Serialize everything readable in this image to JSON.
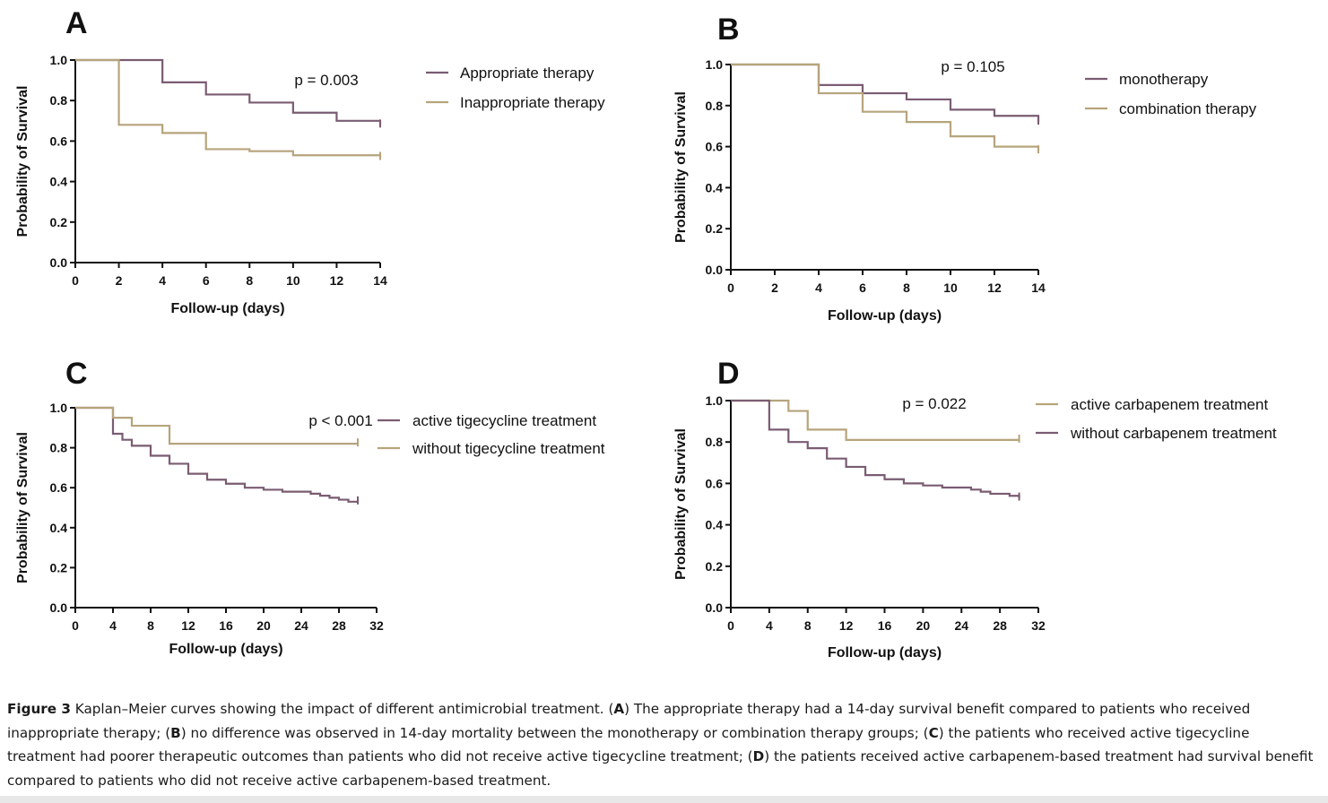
{
  "colors": {
    "purple": "#7a5c72",
    "tan": "#b6a47c",
    "axis": "#111111"
  },
  "chart_data": [
    {
      "panel": "A",
      "type": "line",
      "step": true,
      "xlabel": "Follow-up (days)",
      "ylabel": "Probability of Survival",
      "xlim": [
        0,
        14
      ],
      "ylim": [
        0,
        1.0
      ],
      "xticks": [
        0,
        2,
        4,
        6,
        8,
        10,
        12,
        14
      ],
      "yticks": [
        0.0,
        0.2,
        0.4,
        0.6,
        0.8,
        1.0
      ],
      "annotation": "p = 0.003",
      "series": [
        {
          "name": "Appropriate therapy",
          "color": "purple",
          "x": [
            0,
            4,
            6,
            8,
            10,
            12,
            14
          ],
          "y": [
            1.0,
            0.89,
            0.83,
            0.79,
            0.74,
            0.7,
            0.68
          ]
        },
        {
          "name": "Inappropriate therapy",
          "color": "tan",
          "x": [
            0,
            2,
            4,
            6,
            8,
            10,
            14
          ],
          "y": [
            1.0,
            0.68,
            0.64,
            0.56,
            0.55,
            0.53,
            0.52
          ]
        }
      ]
    },
    {
      "panel": "B",
      "type": "line",
      "step": true,
      "xlabel": "Follow-up (days)",
      "ylabel": "Probability of Survival",
      "xlim": [
        0,
        14
      ],
      "ylim": [
        0,
        1.0
      ],
      "xticks": [
        0,
        2,
        4,
        6,
        8,
        10,
        12,
        14
      ],
      "yticks": [
        0.0,
        0.2,
        0.4,
        0.6,
        0.8,
        1.0
      ],
      "annotation": "p = 0.105",
      "series": [
        {
          "name": "monotherapy",
          "color": "purple",
          "x": [
            0,
            4,
            6,
            8,
            10,
            12,
            14
          ],
          "y": [
            1.0,
            0.9,
            0.86,
            0.83,
            0.78,
            0.75,
            0.72
          ]
        },
        {
          "name": "combination therapy",
          "color": "tan",
          "x": [
            0,
            4,
            6,
            8,
            10,
            12,
            14
          ],
          "y": [
            1.0,
            0.86,
            0.77,
            0.72,
            0.65,
            0.6,
            0.58
          ]
        }
      ]
    },
    {
      "panel": "C",
      "type": "line",
      "step": true,
      "xlabel": "Follow-up (days)",
      "ylabel": "Probability of Survival",
      "xlim": [
        0,
        32
      ],
      "ylim": [
        0,
        1.0
      ],
      "xticks": [
        0,
        4,
        8,
        12,
        16,
        20,
        24,
        28,
        32
      ],
      "yticks": [
        0.0,
        0.2,
        0.4,
        0.6,
        0.8,
        1.0
      ],
      "annotation": "p < 0.001",
      "series": [
        {
          "name": "active tigecycline treatment",
          "color": "purple",
          "x": [
            0,
            4,
            5,
            6,
            8,
            10,
            12,
            14,
            16,
            18,
            20,
            22,
            24,
            25,
            26,
            27,
            28,
            29,
            30
          ],
          "y": [
            1.0,
            0.87,
            0.84,
            0.81,
            0.76,
            0.72,
            0.67,
            0.64,
            0.62,
            0.6,
            0.59,
            0.58,
            0.58,
            0.57,
            0.56,
            0.55,
            0.54,
            0.53,
            0.53
          ]
        },
        {
          "name": "without tigecycline treatment",
          "color": "tan",
          "x": [
            0,
            4,
            6,
            10,
            30
          ],
          "y": [
            1.0,
            0.95,
            0.91,
            0.82,
            0.82
          ]
        }
      ]
    },
    {
      "panel": "D",
      "type": "line",
      "step": true,
      "xlabel": "Follow-up (days)",
      "ylabel": "Probability of Survival",
      "xlim": [
        0,
        32
      ],
      "ylim": [
        0,
        1.0
      ],
      "xticks": [
        0,
        4,
        8,
        12,
        16,
        20,
        24,
        28,
        32
      ],
      "yticks": [
        0.0,
        0.2,
        0.4,
        0.6,
        0.8,
        1.0
      ],
      "annotation": "p = 0.022",
      "series": [
        {
          "name": "active carbapenem treatment",
          "color": "tan",
          "x": [
            0,
            6,
            8,
            12,
            30
          ],
          "y": [
            1.0,
            0.95,
            0.86,
            0.81,
            0.81
          ]
        },
        {
          "name": "without carbapenem treatment",
          "color": "purple",
          "x": [
            0,
            4,
            6,
            8,
            10,
            12,
            14,
            16,
            18,
            20,
            22,
            24,
            25,
            26,
            27,
            28,
            29,
            30
          ],
          "y": [
            1.0,
            0.86,
            0.8,
            0.77,
            0.72,
            0.68,
            0.64,
            0.62,
            0.6,
            0.59,
            0.58,
            0.58,
            0.57,
            0.56,
            0.55,
            0.55,
            0.54,
            0.53
          ]
        }
      ]
    }
  ],
  "caption": {
    "figure_label": "Figure 3",
    "intro": " Kaplan–Meier curves showing the impact of different antimicrobial treatment. (",
    "A": "A",
    "a_text": ") The appropriate therapy had a 14-day survival benefit compared to patients who received inappropriate therapy; (",
    "B": "B",
    "b_text": ") no difference was observed in 14-day mortality between the monotherapy or combination therapy groups; (",
    "C": "C",
    "c_text": ") the patients who received active tigecycline treatment had poorer therapeutic outcomes than patients who did not receive active tigecycline treatment; (",
    "D": "D",
    "d_text": ") the patients received active carbapenem-based treatment had survival benefit compared to patients who did not receive active carbapenem-based treatment."
  }
}
